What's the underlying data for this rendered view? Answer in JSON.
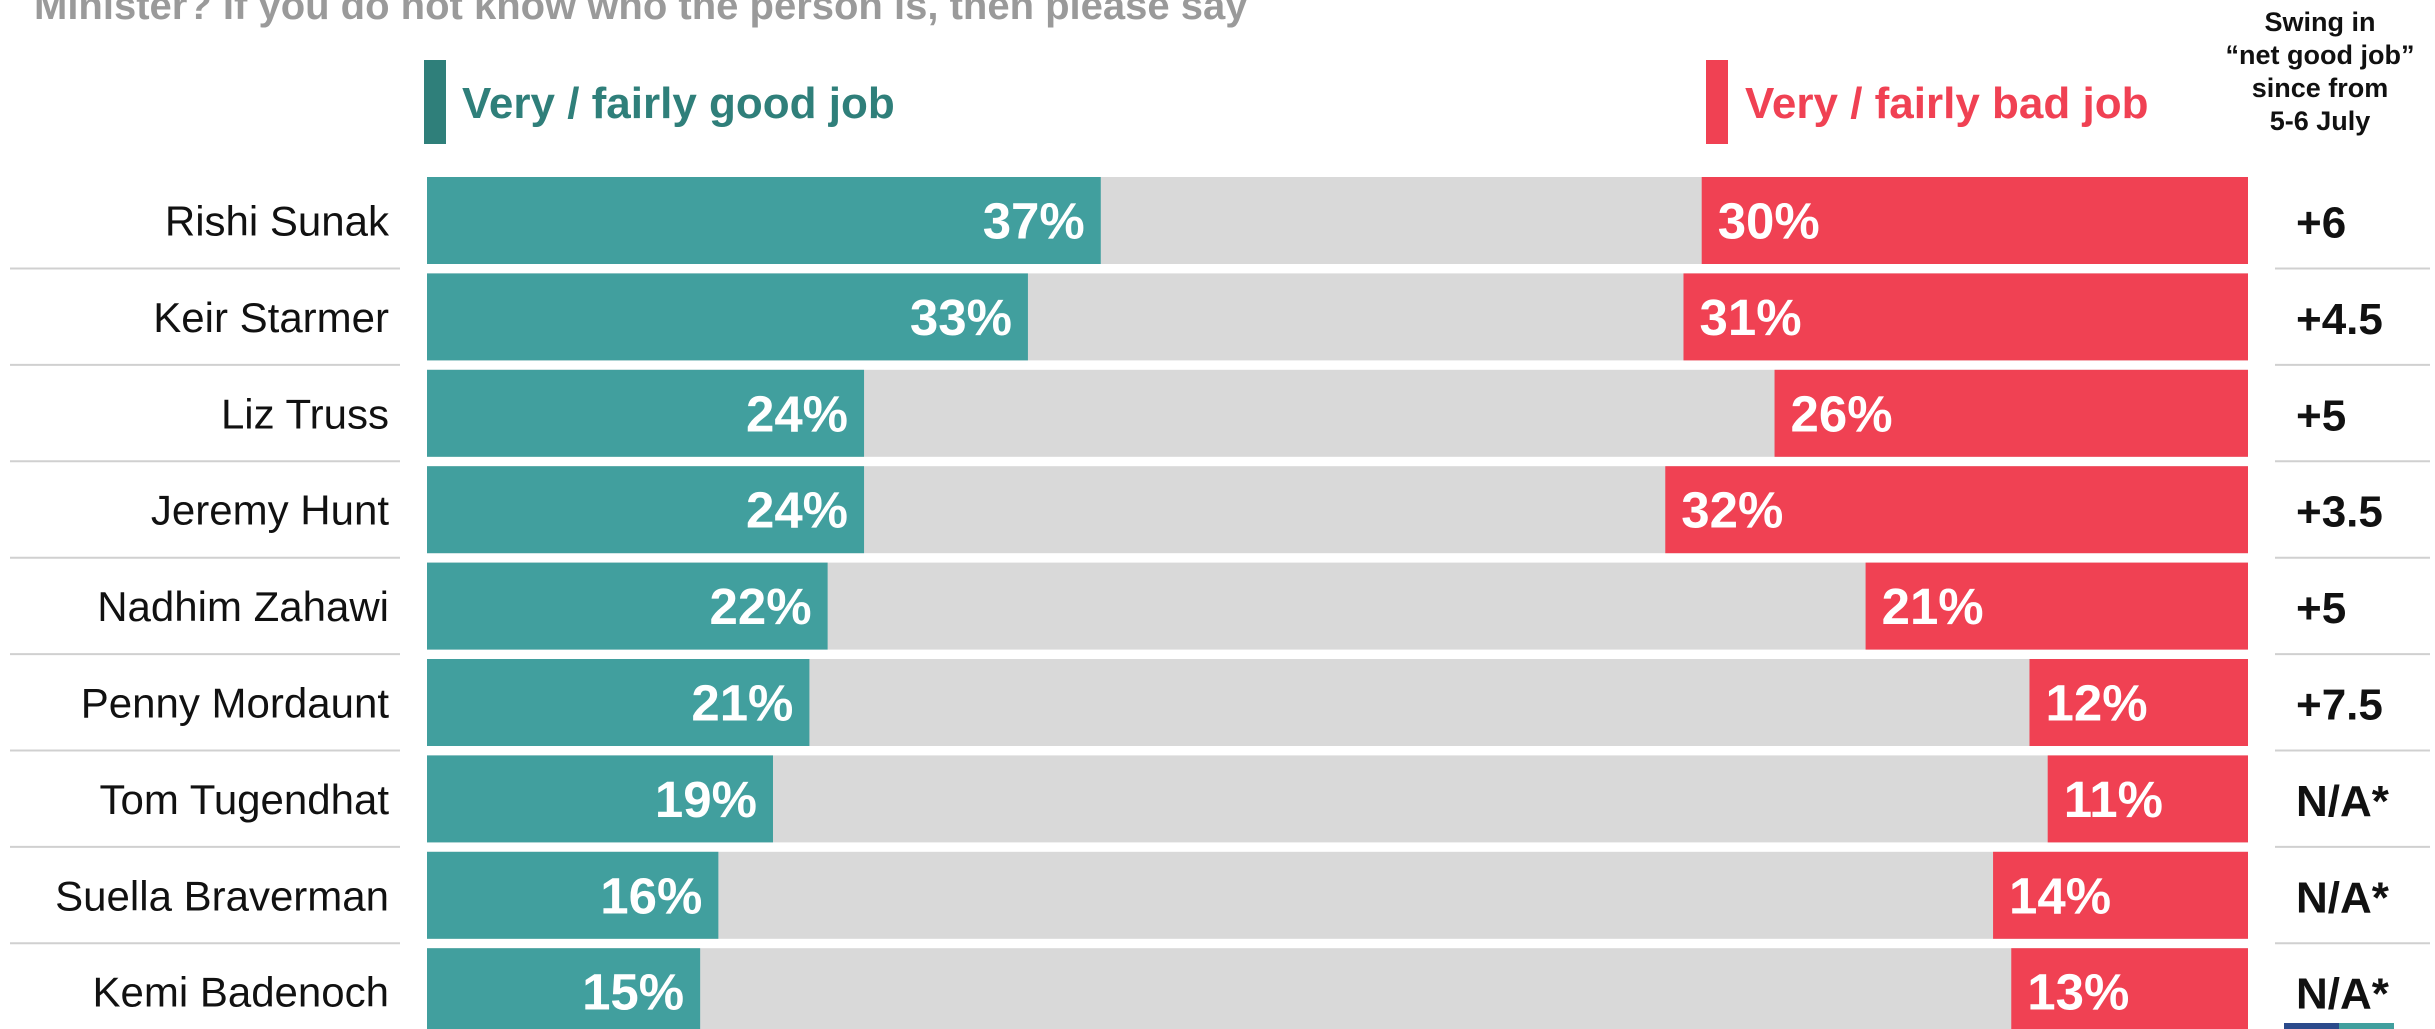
{
  "question": "Minister? If you do not know who the person is, then please say",
  "legend": {
    "good": {
      "label": "Very / fairly good job",
      "color": "#419f9e"
    },
    "bad": {
      "label": "Very / fairly bad job",
      "color": "#f04153"
    }
  },
  "swing_header": {
    "lines": [
      "Swing in",
      "“net good job”",
      "since from",
      "5-6 July"
    ]
  },
  "colors": {
    "good": "#419f9e",
    "bad": "#f04153",
    "neutral": "#d9d9d9",
    "legend_good": "#2f7f7a",
    "separator": "#d0d0d0"
  },
  "chart_data": {
    "type": "bar",
    "stacked": true,
    "orientation": "horizontal",
    "categories": [
      "Rishi Sunak",
      "Keir Starmer",
      "Liz Truss",
      "Jeremy Hunt",
      "Nadhim Zahawi",
      "Penny Mordaunt",
      "Tom Tugendhat",
      "Suella Braverman",
      "Kemi Badenoch"
    ],
    "series": [
      {
        "name": "Very / fairly good job",
        "values": [
          37,
          33,
          24,
          24,
          22,
          21,
          19,
          16,
          15
        ]
      },
      {
        "name": "Very / fairly bad job",
        "values": [
          30,
          31,
          26,
          32,
          21,
          12,
          11,
          14,
          13
        ]
      }
    ],
    "value_labels": {
      "good": [
        "37%",
        "33%",
        "24%",
        "24%",
        "22%",
        "21%",
        "19%",
        "16%",
        "15%"
      ],
      "bad": [
        "30%",
        "31%",
        "26%",
        "32%",
        "21%",
        "12%",
        "11%",
        "14%",
        "13%"
      ]
    },
    "swing": [
      "+6",
      "+4.5",
      "+5",
      "+3.5",
      "+5",
      "+7.5",
      "N/A*",
      "N/A*",
      "N/A*"
    ],
    "xlim": [
      0,
      100
    ],
    "grid": false,
    "legend_position": "top"
  }
}
